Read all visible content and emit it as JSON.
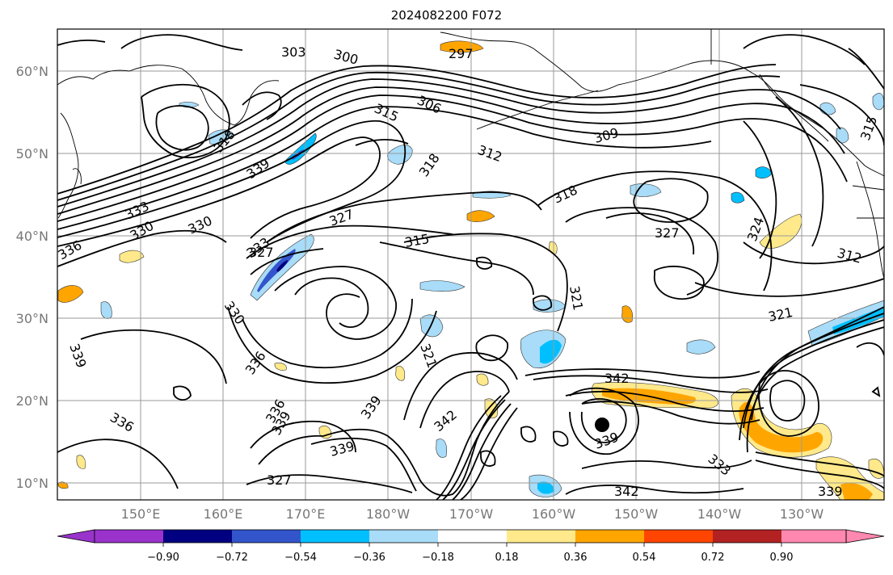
{
  "title": "2024082200 F072",
  "lat_labels": [
    "60°N",
    "50°N",
    "40°N",
    "30°N",
    "20°N",
    "10°N"
  ],
  "lon_labels": [
    "150°E",
    "160°E",
    "170°E",
    "180°W",
    "170°W",
    "160°W",
    "150°W",
    "140°W",
    "130°W"
  ],
  "colorbar": {
    "colors": [
      "#9933cc",
      "#000080",
      "#3355cc",
      "#00bfff",
      "#a8dcf8",
      "#ffffff",
      "#ffe98a",
      "#ffa500",
      "#ff4500",
      "#b22222",
      "#ff88b0"
    ],
    "tick_labels": [
      "−0.90",
      "−0.72",
      "−0.54",
      "−0.36",
      "−0.18",
      "0.18",
      "0.36",
      "0.54",
      "0.72",
      "0.90"
    ]
  },
  "contour_labels": [
    "303",
    "300",
    "297",
    "306",
    "315",
    "309",
    "312",
    "318",
    "318",
    "318",
    "327",
    "327",
    "315",
    "324",
    "312",
    "321",
    "315",
    "330",
    "333",
    "330",
    "336",
    "339",
    "333",
    "339",
    "327",
    "330",
    "321",
    "321",
    "342",
    "336",
    "339",
    "342",
    "339",
    "339",
    "327",
    "336",
    "336",
    "339",
    "333",
    "342",
    "339"
  ]
}
